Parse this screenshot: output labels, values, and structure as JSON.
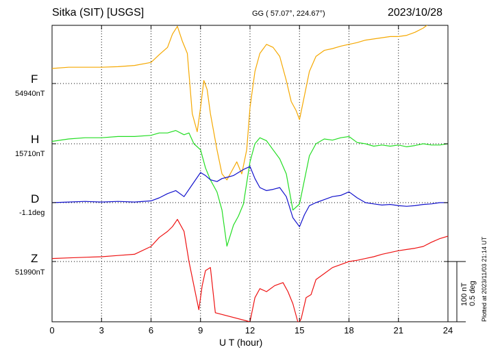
{
  "header": {
    "station": "Sitka (SIT)  [USGS]",
    "coords": "GG ( 57.07°, 224.67°)",
    "date": "2023/10/28"
  },
  "footer": {
    "plotted": "Plotted at 2023/11/03 21:14 UT"
  },
  "scale": {
    "line1": "100 nT",
    "line2": "0.5 deg"
  },
  "colors": {
    "F": "#f5a800",
    "H": "#22dd22",
    "D": "#1010cc",
    "Z": "#ee1111"
  },
  "chart_data": {
    "type": "line",
    "xlabel": "U T (hour)",
    "ylabel": "",
    "xlim": [
      0,
      24
    ],
    "xticks": [
      0,
      3,
      6,
      9,
      12,
      15,
      18,
      21,
      24
    ],
    "grid": true,
    "scale_bar": "100 nT / 0.5 deg",
    "series": [
      {
        "name": "F",
        "baseline_label": "54940nT",
        "x": [
          0,
          1,
          2,
          3,
          4,
          5,
          6,
          6.5,
          7,
          7.3,
          7.6,
          7.9,
          8.2,
          8.5,
          8.8,
          9.0,
          9.2,
          9.4,
          9.6,
          9.8,
          10.0,
          10.3,
          10.6,
          10.9,
          11.2,
          11.5,
          11.8,
          12.0,
          12.3,
          12.6,
          13.0,
          13.4,
          13.8,
          14.2,
          14.5,
          14.8,
          15.0,
          15.3,
          15.6,
          16.0,
          16.5,
          17.0,
          17.5,
          18.0,
          18.5,
          19.0,
          19.5,
          20.0,
          20.5,
          21.0,
          21.5,
          22.0,
          22.5,
          23.0,
          23.5,
          24.0
        ],
        "y": [
          25,
          27,
          27,
          27,
          28,
          30,
          35,
          48,
          60,
          82,
          95,
          70,
          50,
          -50,
          -80,
          -40,
          5,
          -10,
          -50,
          -80,
          -110,
          -150,
          -160,
          -145,
          -130,
          -150,
          -110,
          -40,
          20,
          50,
          65,
          60,
          45,
          5,
          -30,
          -45,
          -60,
          -20,
          20,
          45,
          55,
          58,
          62,
          65,
          68,
          72,
          74,
          76,
          78,
          78,
          80,
          85,
          92,
          102,
          115,
          125
        ]
      },
      {
        "name": "H",
        "baseline_label": "15710nT",
        "x": [
          0,
          1,
          2,
          3,
          4,
          5,
          6,
          6.5,
          7,
          7.5,
          8,
          8.3,
          8.6,
          9,
          9.3,
          9.6,
          10,
          10.3,
          10.6,
          11.0,
          11.3,
          11.6,
          12.0,
          12.3,
          12.6,
          13.0,
          13.4,
          13.8,
          14.2,
          14.6,
          15.0,
          15.3,
          15.6,
          16,
          16.5,
          17,
          17.5,
          18,
          18.5,
          19,
          19.5,
          20,
          20.5,
          21,
          21.5,
          22,
          22.5,
          23,
          23.5,
          24
        ],
        "y": [
          4,
          8,
          10,
          10,
          12,
          12,
          14,
          18,
          18,
          22,
          15,
          18,
          0,
          -10,
          -40,
          -60,
          -80,
          -110,
          -170,
          -135,
          -120,
          -100,
          -30,
          0,
          10,
          5,
          -10,
          -25,
          -50,
          -110,
          -100,
          -60,
          -20,
          0,
          8,
          6,
          10,
          12,
          2,
          0,
          -4,
          -2,
          -4,
          -2,
          -5,
          -3,
          0,
          -2,
          -2,
          0
        ]
      },
      {
        "name": "D",
        "baseline_label": "-1.1deg",
        "x": [
          0,
          1,
          2,
          3,
          4,
          5,
          6,
          6.5,
          7,
          7.5,
          8,
          8.5,
          9,
          9.3,
          9.6,
          10,
          10.3,
          10.6,
          11,
          11.3,
          11.6,
          12,
          12.3,
          12.6,
          13,
          13.4,
          13.8,
          14.2,
          14.6,
          15.0,
          15.3,
          15.6,
          16,
          16.5,
          17,
          17.5,
          18,
          18.5,
          19,
          19.5,
          20,
          20.5,
          21,
          21.5,
          22,
          22.5,
          23,
          23.5,
          24
        ],
        "y": [
          0,
          1,
          2,
          1,
          2,
          1,
          3,
          8,
          15,
          20,
          10,
          30,
          50,
          45,
          38,
          35,
          40,
          42,
          45,
          50,
          55,
          60,
          40,
          25,
          20,
          22,
          25,
          10,
          -25,
          -40,
          -20,
          -5,
          0,
          5,
          10,
          12,
          18,
          8,
          0,
          -2,
          -4,
          -3,
          -5,
          -6,
          -5,
          -3,
          -2,
          0,
          0
        ]
      },
      {
        "name": "Z",
        "baseline_label": "51990nT",
        "x": [
          0,
          1,
          2,
          3,
          4,
          5,
          6,
          6.5,
          7,
          7.3,
          7.6,
          8.0,
          8.3,
          8.6,
          8.9,
          9.1,
          9.3,
          9.6,
          9.9,
          12.0,
          12.3,
          12.6,
          13.0,
          13.5,
          14.0,
          14.3,
          14.6,
          14.9,
          15.0,
          15.1,
          15.4,
          15.7,
          16.0,
          16.5,
          17.0,
          17.5,
          18.0,
          18.5,
          19.0,
          19.5,
          20.0,
          20.5,
          21.0,
          21.5,
          22.0,
          22.5,
          23.0,
          23.5,
          24.0
        ],
        "y": [
          5,
          6,
          7,
          8,
          10,
          12,
          25,
          40,
          50,
          58,
          70,
          50,
          0,
          -40,
          -80,
          -40,
          -15,
          -10,
          -85,
          -100,
          -60,
          -45,
          -50,
          -40,
          -35,
          -50,
          -70,
          -100,
          -100,
          -95,
          -60,
          -55,
          -30,
          -20,
          -10,
          -5,
          0,
          2,
          5,
          8,
          12,
          15,
          18,
          20,
          22,
          25,
          32,
          38,
          42
        ]
      }
    ]
  }
}
